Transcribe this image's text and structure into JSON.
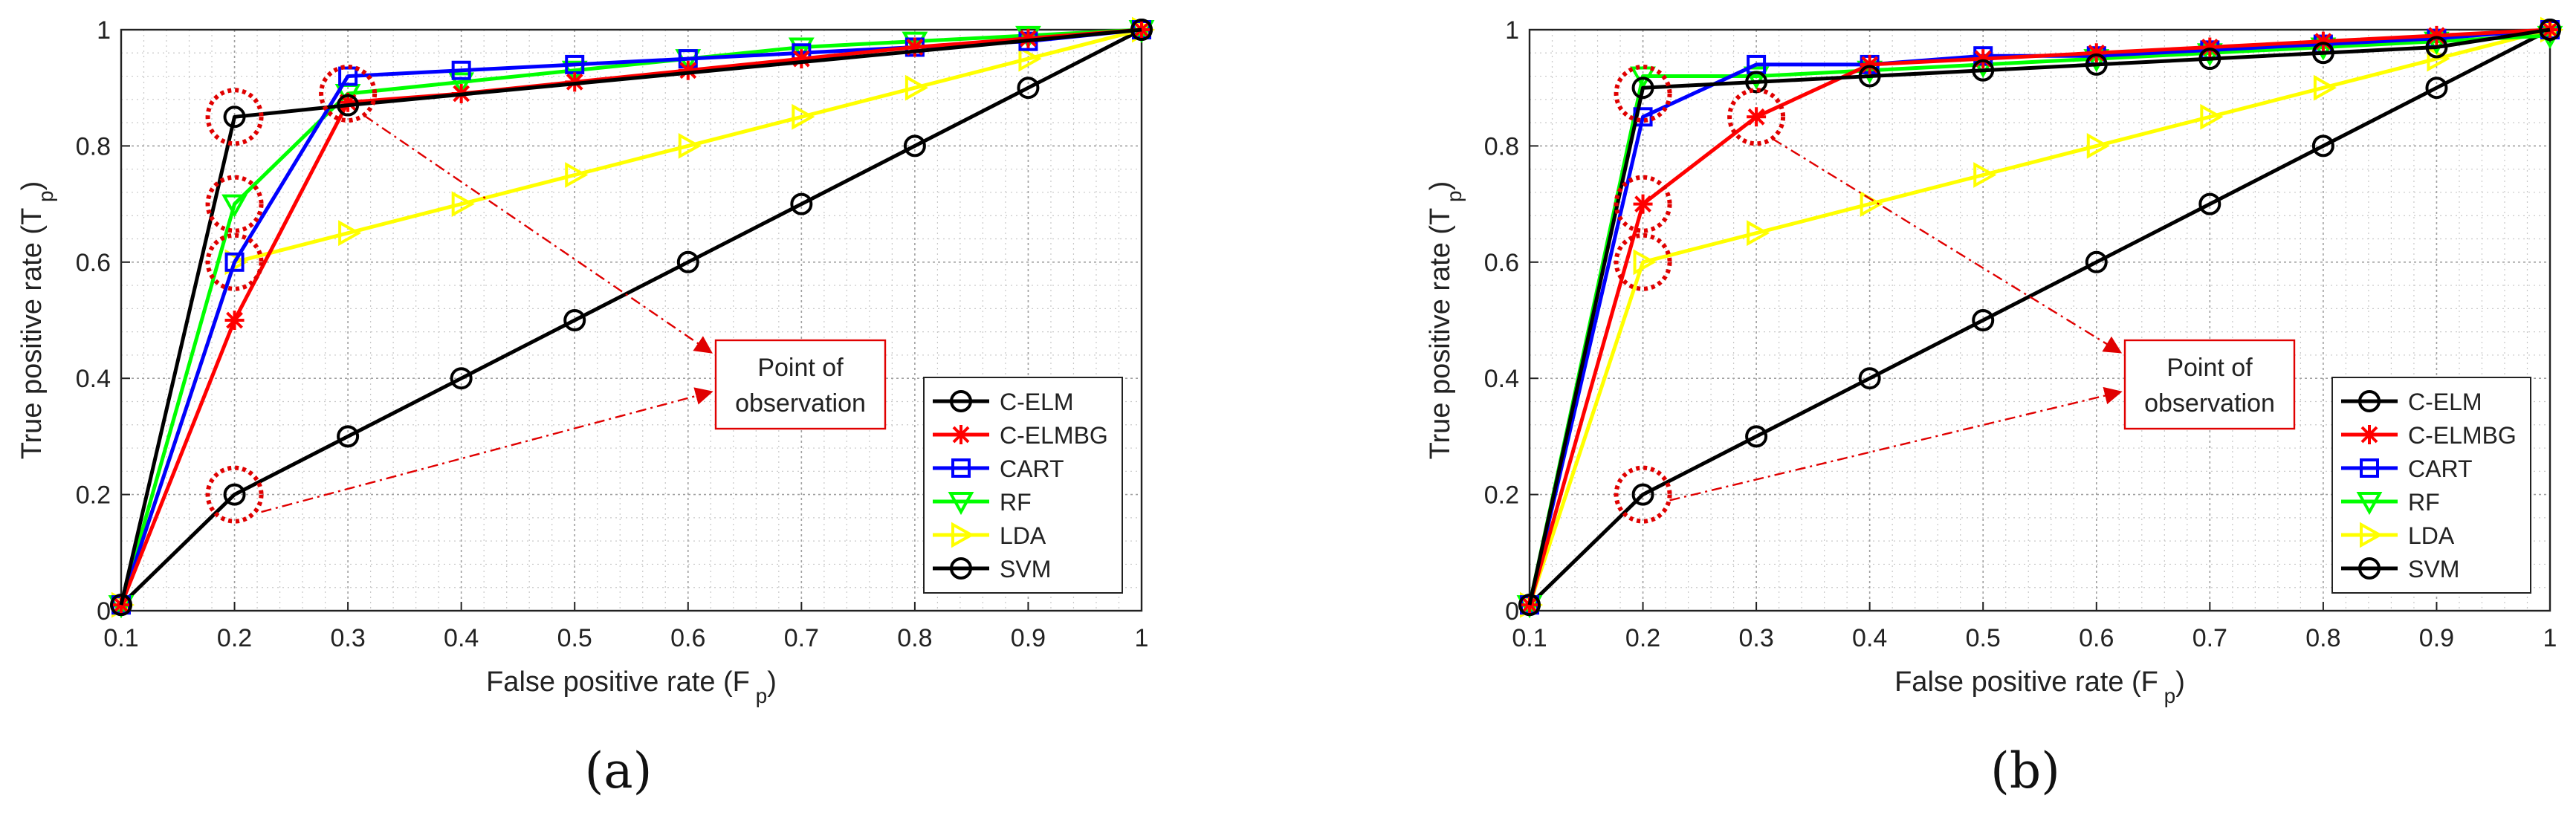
{
  "figure": {
    "panels": [
      "(a)",
      "(b)"
    ]
  },
  "legend_labels": [
    "C-ELM",
    "C-ELMBG",
    "CART",
    "RF",
    "LDA",
    "SVM"
  ],
  "annotation": {
    "line1": "Point of",
    "line2": "observation"
  },
  "chart_data": [
    {
      "type": "line",
      "panel": "(a)",
      "xlabel": "False positive rate (F",
      "xlabel_sub": "p",
      "xlabel_close": ")",
      "ylabel": "True positive rate (T",
      "ylabel_sub": "p",
      "ylabel_close": ")",
      "xlim": [
        0.1,
        1
      ],
      "ylim": [
        0,
        1
      ],
      "x_ticks": [
        "0.1",
        "0.2",
        "0.3",
        "0.4",
        "0.5",
        "0.6",
        "0.7",
        "0.8",
        "0.9",
        "1"
      ],
      "y_ticks": [
        "0",
        "0.2",
        "0.4",
        "0.6",
        "0.8",
        "1"
      ],
      "grid": true,
      "legend_position": "bottom-right",
      "series": [
        {
          "name": "C-ELM",
          "color": "#000000",
          "marker": "circle",
          "x": [
            0.1,
            0.2,
            0.3,
            1
          ],
          "y": [
            0.01,
            0.85,
            0.87,
            1
          ]
        },
        {
          "name": "C-ELMBG",
          "color": "#ff0000",
          "marker": "asterisk",
          "x": [
            0.1,
            0.2,
            0.3,
            0.4,
            0.5,
            0.6,
            0.7,
            0.8,
            0.9,
            1
          ],
          "y": [
            0.01,
            0.5,
            0.875,
            0.89,
            0.91,
            0.93,
            0.95,
            0.97,
            0.985,
            1
          ]
        },
        {
          "name": "CART",
          "color": "#0000ff",
          "marker": "square",
          "x": [
            0.1,
            0.2,
            0.3,
            0.4,
            0.5,
            0.6,
            0.7,
            0.8,
            0.9,
            1
          ],
          "y": [
            0.01,
            0.6,
            0.92,
            0.93,
            0.94,
            0.95,
            0.96,
            0.97,
            0.98,
            1
          ]
        },
        {
          "name": "RF",
          "color": "#00ff00",
          "marker": "triangle-down",
          "x": [
            0.1,
            0.2,
            0.3,
            0.4,
            0.5,
            0.6,
            0.7,
            0.8,
            0.9,
            1
          ],
          "y": [
            0.01,
            0.7,
            0.89,
            0.91,
            0.93,
            0.95,
            0.97,
            0.98,
            0.99,
            1
          ]
        },
        {
          "name": "LDA",
          "color": "#ffff00",
          "marker": "triangle-right",
          "x": [
            0.1,
            0.2,
            0.3,
            0.4,
            0.5,
            0.6,
            0.7,
            0.8,
            0.9,
            1
          ],
          "y": [
            0.01,
            0.6,
            0.65,
            0.7,
            0.75,
            0.8,
            0.85,
            0.9,
            0.95,
            1
          ]
        },
        {
          "name": "SVM",
          "color": "#000000",
          "marker": "circle",
          "x": [
            0.1,
            0.2,
            0.3,
            0.4,
            0.5,
            0.6,
            0.7,
            0.8,
            0.9,
            1
          ],
          "y": [
            0.01,
            0.2,
            0.3,
            0.4,
            0.5,
            0.6,
            0.7,
            0.8,
            0.9,
            1
          ]
        }
      ],
      "observation_points": [
        [
          0.2,
          0.85
        ],
        [
          0.2,
          0.7
        ],
        [
          0.2,
          0.6
        ],
        [
          0.2,
          0.2
        ],
        [
          0.3,
          0.89
        ]
      ],
      "arrow_sources": [
        [
          0.3,
          0.87
        ],
        [
          0.2,
          0.17
        ]
      ]
    },
    {
      "type": "line",
      "panel": "(b)",
      "xlabel": "False positive rate (F",
      "xlabel_sub": "p",
      "xlabel_close": ")",
      "ylabel": "True positive rate (T",
      "ylabel_sub": "p",
      "ylabel_close": ")",
      "xlim": [
        0.1,
        1
      ],
      "ylim": [
        0,
        1
      ],
      "x_ticks": [
        "0.1",
        "0.2",
        "0.3",
        "0.4",
        "0.5",
        "0.6",
        "0.7",
        "0.8",
        "0.9",
        "1"
      ],
      "y_ticks": [
        "0",
        "0.2",
        "0.4",
        "0.6",
        "0.8",
        "1"
      ],
      "grid": true,
      "legend_position": "bottom-right",
      "series": [
        {
          "name": "C-ELM",
          "color": "#000000",
          "marker": "circle",
          "x": [
            0.1,
            0.2,
            0.3,
            0.4,
            0.5,
            0.6,
            0.7,
            0.8,
            0.9,
            1
          ],
          "y": [
            0.01,
            0.9,
            0.91,
            0.92,
            0.93,
            0.94,
            0.95,
            0.96,
            0.97,
            1
          ]
        },
        {
          "name": "C-ELMBG",
          "color": "#ff0000",
          "marker": "asterisk",
          "x": [
            0.1,
            0.2,
            0.3,
            0.4,
            0.5,
            0.6,
            0.7,
            0.8,
            0.9,
            1
          ],
          "y": [
            0.01,
            0.7,
            0.85,
            0.94,
            0.95,
            0.96,
            0.97,
            0.98,
            0.99,
            1
          ]
        },
        {
          "name": "CART",
          "color": "#0000ff",
          "marker": "square",
          "x": [
            0.1,
            0.2,
            0.3,
            0.4,
            0.5,
            0.6,
            0.7,
            0.8,
            0.9,
            1
          ],
          "y": [
            0.01,
            0.85,
            0.94,
            0.94,
            0.955,
            0.955,
            0.965,
            0.975,
            0.985,
            1
          ]
        },
        {
          "name": "RF",
          "color": "#00ff00",
          "marker": "triangle-down",
          "x": [
            0.1,
            0.2,
            0.3,
            0.4,
            0.5,
            0.6,
            0.7,
            0.8,
            0.9,
            1
          ],
          "y": [
            0.01,
            0.92,
            0.92,
            0.93,
            0.94,
            0.95,
            0.96,
            0.97,
            0.98,
            0.99
          ]
        },
        {
          "name": "LDA",
          "color": "#ffff00",
          "marker": "triangle-right",
          "x": [
            0.1,
            0.2,
            0.3,
            0.4,
            0.5,
            0.6,
            0.7,
            0.8,
            0.9,
            1
          ],
          "y": [
            0.01,
            0.6,
            0.65,
            0.7,
            0.75,
            0.8,
            0.85,
            0.9,
            0.95,
            1
          ]
        },
        {
          "name": "SVM",
          "color": "#000000",
          "marker": "circle",
          "x": [
            0.1,
            0.2,
            0.3,
            0.4,
            0.5,
            0.6,
            0.7,
            0.8,
            0.9,
            1
          ],
          "y": [
            0.01,
            0.2,
            0.3,
            0.4,
            0.5,
            0.6,
            0.7,
            0.8,
            0.9,
            1
          ]
        }
      ],
      "observation_points": [
        [
          0.2,
          0.89
        ],
        [
          0.3,
          0.85
        ],
        [
          0.2,
          0.7
        ],
        [
          0.2,
          0.6
        ],
        [
          0.2,
          0.2
        ]
      ],
      "arrow_sources": [
        [
          0.3,
          0.83
        ],
        [
          0.2,
          0.19
        ]
      ]
    }
  ]
}
